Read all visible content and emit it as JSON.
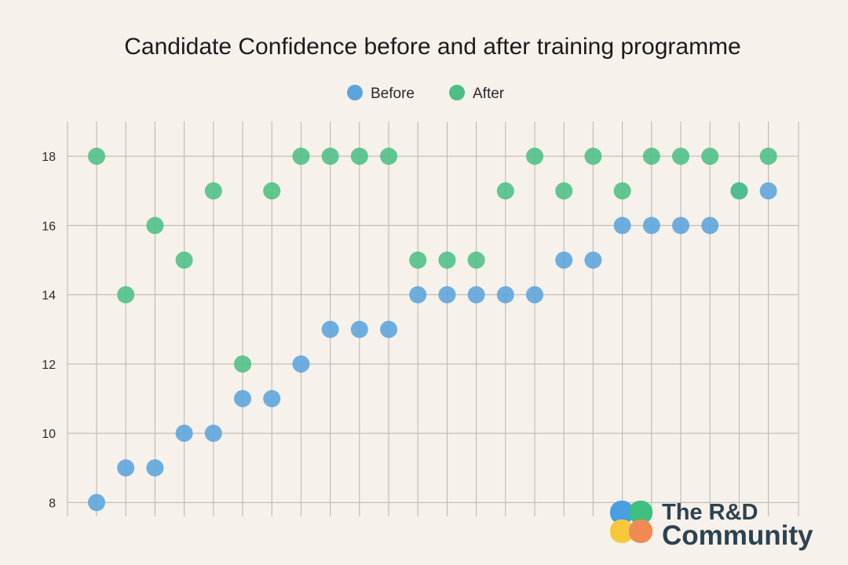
{
  "chart_data": {
    "type": "scatter",
    "title": "Candidate Confidence before and after training programme",
    "xlabel": "",
    "ylabel": "",
    "ylim": [
      7.6,
      19
    ],
    "yticks": [
      8,
      10,
      12,
      14,
      16,
      18
    ],
    "grid": true,
    "legend_position": "top-center",
    "series": [
      {
        "name": "Before",
        "color": "#5ba4dd",
        "values": [
          8,
          9,
          9,
          10,
          10,
          11,
          11,
          12,
          13,
          13,
          13,
          14,
          14,
          14,
          14,
          14,
          15,
          15,
          16,
          16,
          16,
          16,
          17,
          17
        ]
      },
      {
        "name": "After",
        "color": "#4cbf84",
        "values": [
          18,
          14,
          16,
          15,
          17,
          12,
          17,
          18,
          18,
          18,
          18,
          15,
          15,
          15,
          17,
          18,
          17,
          18,
          17,
          18,
          18,
          18,
          17,
          18
        ]
      }
    ]
  },
  "logo": {
    "line1": "The R&D",
    "line2": "Community",
    "colors": [
      "#4a9fe0",
      "#3fbf7f",
      "#f7c93a",
      "#f08a55"
    ]
  }
}
